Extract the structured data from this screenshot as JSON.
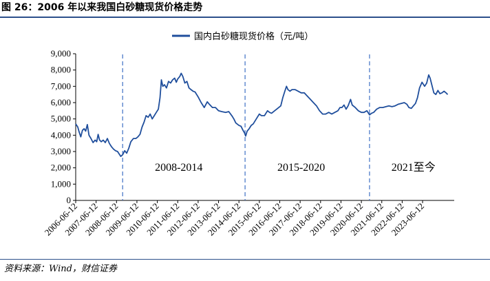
{
  "figure": {
    "title": "图 26：2006 年以来我国白砂糖现货价格走势",
    "source": "资料来源：Wind，财信证券"
  },
  "colors": {
    "series": "#1f4e9c",
    "divider": "#3d6fc4",
    "axis": "#000000"
  },
  "chart_data": {
    "type": "line",
    "legend": {
      "position": "top-center"
    },
    "xlabel": "",
    "ylabel": "",
    "ylim": [
      0,
      9000
    ],
    "yticks": [
      "0",
      "1,000",
      "2,000",
      "3,000",
      "4,000",
      "5,000",
      "6,000",
      "7,000",
      "8,000",
      "9,000"
    ],
    "xlim": [
      2006.45,
      2025.0
    ],
    "xticks": [
      {
        "label": "2006-06-12",
        "x": 2006.45
      },
      {
        "label": "2007-06-12",
        "x": 2007.45
      },
      {
        "label": "2008-06-12",
        "x": 2008.45
      },
      {
        "label": "2009-06-12",
        "x": 2009.45
      },
      {
        "label": "2010-06-12",
        "x": 2010.45
      },
      {
        "label": "2011-06-12",
        "x": 2011.45
      },
      {
        "label": "2012-06-12",
        "x": 2012.45
      },
      {
        "label": "2013-06-12",
        "x": 2013.45
      },
      {
        "label": "2014-06-12",
        "x": 2014.45
      },
      {
        "label": "2015-06-12",
        "x": 2015.45
      },
      {
        "label": "2016-06-12",
        "x": 2016.45
      },
      {
        "label": "2017-06-12",
        "x": 2017.45
      },
      {
        "label": "2018-06-12",
        "x": 2018.45
      },
      {
        "label": "2019-06-12",
        "x": 2019.45
      },
      {
        "label": "2020-06-12",
        "x": 2020.45
      },
      {
        "label": "2021-06-12",
        "x": 2021.45
      },
      {
        "label": "2022-06-12",
        "x": 2022.45
      },
      {
        "label": "2023-06-12",
        "x": 2023.45
      }
    ],
    "dividers": [
      {
        "x": 2008.75,
        "label": "2008-2014",
        "label_x": 2011.5
      },
      {
        "x": 2014.75,
        "label": "2015-2020",
        "label_x": 2017.5
      },
      {
        "x": 2020.85,
        "label": "2021至今",
        "label_x": 2023.0
      }
    ],
    "series": [
      {
        "name": "国内白砂糖现货价格（元/吨）",
        "points": [
          [
            2006.45,
            4700
          ],
          [
            2006.55,
            4500
          ],
          [
            2006.62,
            4200
          ],
          [
            2006.7,
            3900
          ],
          [
            2006.78,
            4300
          ],
          [
            2006.86,
            4400
          ],
          [
            2006.94,
            4250
          ],
          [
            2007.02,
            4650
          ],
          [
            2007.1,
            4000
          ],
          [
            2007.2,
            3800
          ],
          [
            2007.3,
            3550
          ],
          [
            2007.4,
            3700
          ],
          [
            2007.48,
            3600
          ],
          [
            2007.55,
            4050
          ],
          [
            2007.62,
            3700
          ],
          [
            2007.7,
            3600
          ],
          [
            2007.8,
            3700
          ],
          [
            2007.9,
            3550
          ],
          [
            2008.0,
            3800
          ],
          [
            2008.1,
            3500
          ],
          [
            2008.2,
            3300
          ],
          [
            2008.3,
            3150
          ],
          [
            2008.4,
            3050
          ],
          [
            2008.5,
            3000
          ],
          [
            2008.58,
            2850
          ],
          [
            2008.66,
            2700
          ],
          [
            2008.75,
            2800
          ],
          [
            2008.85,
            3050
          ],
          [
            2008.95,
            2900
          ],
          [
            2009.05,
            3200
          ],
          [
            2009.15,
            3600
          ],
          [
            2009.28,
            3800
          ],
          [
            2009.4,
            3800
          ],
          [
            2009.5,
            3900
          ],
          [
            2009.6,
            4050
          ],
          [
            2009.7,
            4500
          ],
          [
            2009.8,
            4800
          ],
          [
            2009.9,
            5200
          ],
          [
            2010.0,
            5100
          ],
          [
            2010.1,
            5300
          ],
          [
            2010.2,
            5000
          ],
          [
            2010.3,
            5200
          ],
          [
            2010.4,
            5400
          ],
          [
            2010.5,
            5600
          ],
          [
            2010.58,
            6300
          ],
          [
            2010.65,
            7400
          ],
          [
            2010.72,
            7000
          ],
          [
            2010.8,
            7100
          ],
          [
            2010.9,
            6900
          ],
          [
            2011.0,
            7300
          ],
          [
            2011.1,
            7200
          ],
          [
            2011.2,
            7400
          ],
          [
            2011.3,
            7500
          ],
          [
            2011.38,
            7250
          ],
          [
            2011.45,
            7450
          ],
          [
            2011.55,
            7600
          ],
          [
            2011.62,
            7800
          ],
          [
            2011.7,
            7600
          ],
          [
            2011.8,
            7200
          ],
          [
            2011.9,
            7300
          ],
          [
            2012.0,
            6900
          ],
          [
            2012.1,
            6800
          ],
          [
            2012.2,
            6700
          ],
          [
            2012.3,
            6650
          ],
          [
            2012.45,
            6350
          ],
          [
            2012.6,
            6000
          ],
          [
            2012.75,
            5700
          ],
          [
            2012.9,
            6050
          ],
          [
            2013.0,
            5900
          ],
          [
            2013.15,
            5700
          ],
          [
            2013.3,
            5700
          ],
          [
            2013.45,
            5500
          ],
          [
            2013.6,
            5450
          ],
          [
            2013.8,
            5400
          ],
          [
            2013.95,
            5450
          ],
          [
            2014.1,
            5200
          ],
          [
            2014.2,
            5000
          ],
          [
            2014.3,
            4750
          ],
          [
            2014.45,
            4600
          ],
          [
            2014.55,
            4550
          ],
          [
            2014.65,
            4300
          ],
          [
            2014.72,
            4150
          ],
          [
            2014.78,
            3950
          ],
          [
            2014.85,
            4250
          ],
          [
            2014.95,
            4400
          ],
          [
            2015.05,
            4600
          ],
          [
            2015.15,
            4700
          ],
          [
            2015.3,
            5000
          ],
          [
            2015.45,
            5300
          ],
          [
            2015.55,
            5200
          ],
          [
            2015.7,
            5200
          ],
          [
            2015.85,
            5500
          ],
          [
            2015.95,
            5400
          ],
          [
            2016.05,
            5350
          ],
          [
            2016.2,
            5500
          ],
          [
            2016.35,
            5650
          ],
          [
            2016.5,
            5800
          ],
          [
            2016.6,
            6300
          ],
          [
            2016.7,
            6700
          ],
          [
            2016.78,
            7000
          ],
          [
            2016.85,
            6800
          ],
          [
            2016.95,
            6700
          ],
          [
            2017.05,
            6800
          ],
          [
            2017.2,
            6800
          ],
          [
            2017.35,
            6700
          ],
          [
            2017.5,
            6600
          ],
          [
            2017.65,
            6600
          ],
          [
            2017.8,
            6400
          ],
          [
            2017.95,
            6200
          ],
          [
            2018.1,
            6000
          ],
          [
            2018.25,
            5800
          ],
          [
            2018.4,
            5500
          ],
          [
            2018.55,
            5300
          ],
          [
            2018.7,
            5300
          ],
          [
            2018.85,
            5400
          ],
          [
            2019.0,
            5300
          ],
          [
            2019.15,
            5400
          ],
          [
            2019.3,
            5500
          ],
          [
            2019.4,
            5700
          ],
          [
            2019.5,
            5700
          ],
          [
            2019.6,
            5850
          ],
          [
            2019.7,
            5600
          ],
          [
            2019.8,
            5800
          ],
          [
            2019.92,
            6200
          ],
          [
            2020.0,
            5850
          ],
          [
            2020.15,
            5700
          ],
          [
            2020.3,
            5500
          ],
          [
            2020.45,
            5400
          ],
          [
            2020.58,
            5400
          ],
          [
            2020.72,
            5500
          ],
          [
            2020.85,
            5250
          ],
          [
            2020.95,
            5350
          ],
          [
            2021.05,
            5400
          ],
          [
            2021.2,
            5600
          ],
          [
            2021.35,
            5700
          ],
          [
            2021.5,
            5700
          ],
          [
            2021.65,
            5750
          ],
          [
            2021.8,
            5800
          ],
          [
            2021.95,
            5750
          ],
          [
            2022.1,
            5800
          ],
          [
            2022.25,
            5900
          ],
          [
            2022.4,
            5950
          ],
          [
            2022.55,
            6000
          ],
          [
            2022.68,
            5900
          ],
          [
            2022.78,
            5700
          ],
          [
            2022.9,
            5650
          ],
          [
            2023.0,
            5800
          ],
          [
            2023.1,
            5950
          ],
          [
            2023.2,
            6300
          ],
          [
            2023.3,
            6900
          ],
          [
            2023.42,
            7250
          ],
          [
            2023.55,
            7000
          ],
          [
            2023.65,
            7200
          ],
          [
            2023.75,
            7700
          ],
          [
            2023.82,
            7500
          ],
          [
            2023.9,
            7100
          ],
          [
            2024.0,
            6600
          ],
          [
            2024.1,
            6500
          ],
          [
            2024.2,
            6750
          ],
          [
            2024.3,
            6550
          ],
          [
            2024.4,
            6600
          ],
          [
            2024.5,
            6700
          ],
          [
            2024.6,
            6600
          ],
          [
            2024.68,
            6500
          ]
        ]
      }
    ]
  }
}
